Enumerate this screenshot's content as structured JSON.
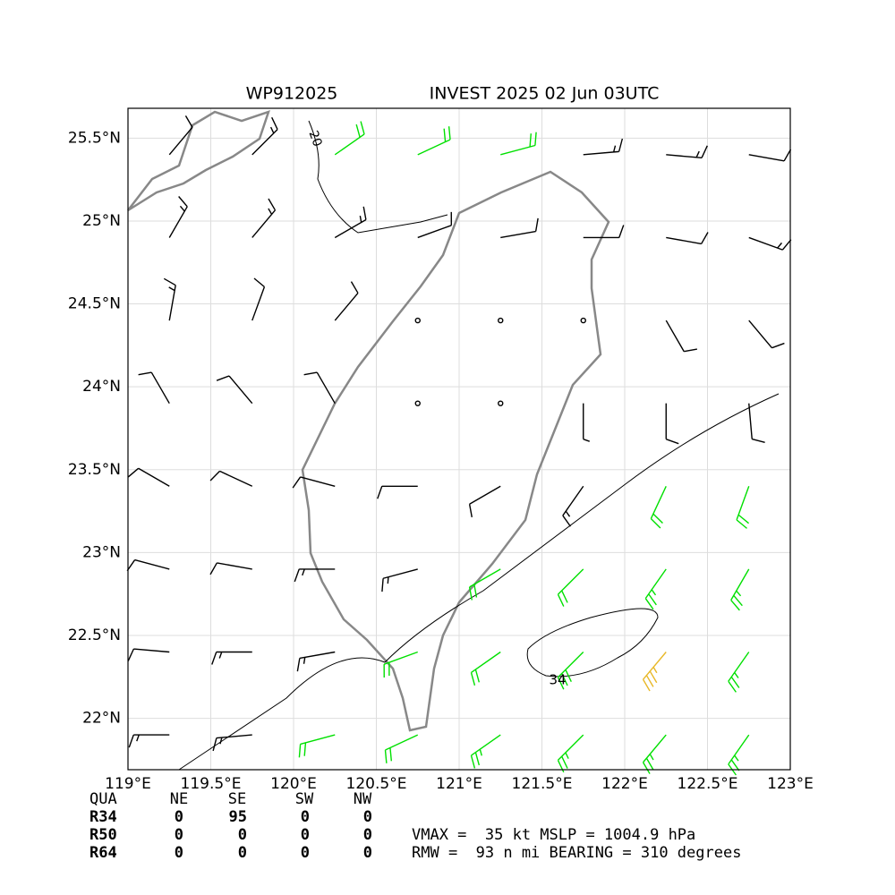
{
  "chart_data": {
    "type": "barbs",
    "title_left": "WP912025",
    "title_right": "INVEST 2025 02 Jun 03UTC",
    "xlim": [
      119,
      123
    ],
    "ylim": [
      21.69,
      25.68
    ],
    "xticks": [
      {
        "value": 119,
        "label": "119°E"
      },
      {
        "value": 119.5,
        "label": "119.5°E"
      },
      {
        "value": 120,
        "label": "120°E"
      },
      {
        "value": 120.5,
        "label": "120.5°E"
      },
      {
        "value": 121,
        "label": "121°E"
      },
      {
        "value": 121.5,
        "label": "121.5°E"
      },
      {
        "value": 122,
        "label": "122°E"
      },
      {
        "value": 122.5,
        "label": "122.5°E"
      },
      {
        "value": 123,
        "label": "123°E"
      }
    ],
    "yticks": [
      {
        "value": 22,
        "label": "22°N"
      },
      {
        "value": 22.5,
        "label": "22.5°N"
      },
      {
        "value": 23,
        "label": "23°N"
      },
      {
        "value": 23.5,
        "label": "23.5°N"
      },
      {
        "value": 24,
        "label": "24°N"
      },
      {
        "value": 24.5,
        "label": "24.5°N"
      },
      {
        "value": 25,
        "label": "25°N"
      },
      {
        "value": 25.5,
        "label": "25.5°N"
      }
    ],
    "grid": true,
    "speed_colors": [
      {
        "min": 0,
        "color": "#000000"
      },
      {
        "min": 20,
        "color": "#00e000"
      },
      {
        "min": 34,
        "color": "#e8b828"
      }
    ],
    "lon": [
      119.25,
      119.75,
      120.25,
      120.75,
      121.25,
      121.75,
      122.25,
      122.75
    ],
    "lat": [
      21.9,
      22.4,
      22.9,
      23.4,
      23.9,
      24.4,
      24.9,
      25.4
    ],
    "speed": [
      [
        15,
        18,
        22,
        24,
        26,
        28,
        27,
        26
      ],
      [
        14,
        16,
        18,
        20,
        24,
        32,
        35,
        26
      ],
      [
        12,
        14,
        15,
        16,
        20,
        24,
        26,
        25
      ],
      [
        12,
        13,
        14,
        12,
        10,
        15,
        22,
        24
      ],
      [
        14,
        13,
        10,
        0,
        0,
        8,
        12,
        14
      ],
      [
        15,
        14,
        10,
        0,
        0,
        0,
        10,
        12
      ],
      [
        16,
        17,
        18,
        12,
        10,
        12,
        14,
        15
      ],
      [
        14,
        16,
        22,
        24,
        20,
        16,
        15,
        14
      ]
    ],
    "direction": [
      [
        270,
        265,
        255,
        245,
        235,
        225,
        220,
        215
      ],
      [
        275,
        270,
        260,
        250,
        235,
        225,
        220,
        215
      ],
      [
        285,
        280,
        270,
        255,
        240,
        225,
        215,
        210
      ],
      [
        300,
        295,
        285,
        270,
        240,
        215,
        205,
        200
      ],
      [
        330,
        320,
        330,
        0,
        0,
        180,
        180,
        175
      ],
      [
        10,
        20,
        40,
        0,
        0,
        0,
        150,
        140
      ],
      [
        30,
        40,
        60,
        70,
        80,
        90,
        100,
        110
      ],
      [
        40,
        45,
        55,
        65,
        75,
        85,
        95,
        100
      ]
    ],
    "contours": [
      20,
      34
    ]
  },
  "table": {
    "header": [
      "QUA",
      "NE",
      "SE",
      "SW",
      "NW"
    ],
    "rows": [
      [
        "R34",
        "0",
        "95",
        "0",
        "0"
      ],
      [
        "R50",
        "0",
        "0",
        "0",
        "0"
      ],
      [
        "R64",
        "0",
        "0",
        "0",
        "0"
      ]
    ]
  },
  "summary": [
    "VMAX =  35 kt MSLP = 1004.9 hPa",
    "RMW =  93 n mi BEARING = 310 degrees"
  ]
}
